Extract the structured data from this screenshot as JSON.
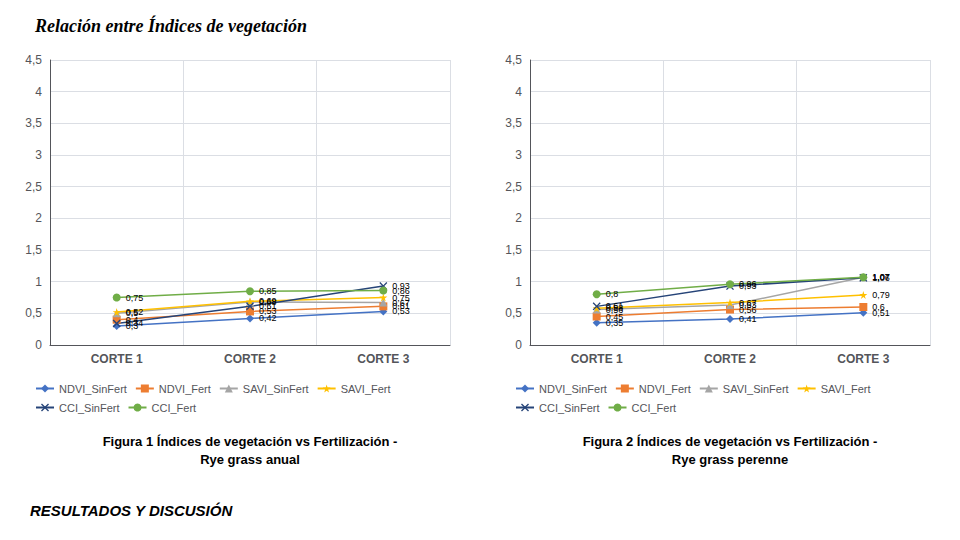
{
  "chart_data": [
    {
      "type": "line",
      "title": "Figura 1 Índices de vegetación vs Fertilización -",
      "subtitle": "Rye grass anual",
      "annotations": [
        "Relación entre Índices de vegetación",
        "RESULTADOS Y DISCUSIÓN"
      ],
      "categories": [
        "CORTE 1",
        "CORTE 2",
        "CORTE 3"
      ],
      "series": [
        {
          "name": "NDVI_SinFert",
          "color": "#4472C4",
          "marker": "diamond",
          "values": [
            0.3,
            0.42,
            0.53
          ],
          "value_labels": [
            "0,3",
            "0,42",
            "0,53"
          ]
        },
        {
          "name": "NDVI_Fert",
          "color": "#ED7D31",
          "marker": "square",
          "values": [
            0.4,
            0.53,
            0.61
          ],
          "value_labels": [
            "0,4",
            "0,53",
            "0,61"
          ]
        },
        {
          "name": "SAVI_SinFert",
          "color": "#A5A5A5",
          "marker": "triangle",
          "values": [
            0.5,
            0.68,
            0.67
          ],
          "value_labels": [
            "0,5",
            "0,68",
            "0,67"
          ]
        },
        {
          "name": "SAVI_Fert",
          "color": "#FFC000",
          "marker": "star",
          "values": [
            0.52,
            0.69,
            0.75
          ],
          "value_labels": [
            "0,52",
            "0,69",
            "0,75"
          ]
        },
        {
          "name": "CCI_SinFert",
          "color": "#264478",
          "marker": "x",
          "values": [
            0.34,
            0.61,
            0.93
          ],
          "value_labels": [
            "0,34",
            "0,61",
            "0,93"
          ]
        },
        {
          "name": "CCI_Fert",
          "color": "#70AD47",
          "marker": "circle",
          "values": [
            0.75,
            0.85,
            0.86
          ],
          "value_labels": [
            "0,75",
            "0,85",
            "0,86"
          ]
        }
      ],
      "ylim": [
        0,
        4.5
      ],
      "yticks": [
        0,
        {
          "value": 0.5,
          "label": "0,5"
        },
        1,
        {
          "value": 1.5,
          "label": "1,5"
        },
        2,
        {
          "value": 2.5,
          "label": "2,5"
        },
        3,
        {
          "value": 3.5,
          "label": "3,5"
        },
        4,
        {
          "value": 4.5,
          "label": "4,5"
        }
      ],
      "grid": true,
      "legend": "bottom",
      "data_labels": true
    },
    {
      "type": "line",
      "title": "Figura 2 Índices de vegetación vs Fertilización -",
      "subtitle": "Rye grass perenne",
      "categories": [
        "CORTE 1",
        "CORTE 2",
        "CORTE 3"
      ],
      "series": [
        {
          "name": "NDVI_SinFert",
          "color": "#4472C4",
          "marker": "diamond",
          "values": [
            0.35,
            0.41,
            0.51
          ],
          "value_labels": [
            "0,35",
            "0,41",
            "0,51"
          ]
        },
        {
          "name": "NDVI_Fert",
          "color": "#ED7D31",
          "marker": "square",
          "values": [
            0.45,
            0.56,
            0.6
          ],
          "value_labels": [
            "0,45",
            "0,56",
            "0,6"
          ]
        },
        {
          "name": "SAVI_SinFert",
          "color": "#A5A5A5",
          "marker": "triangle",
          "values": [
            0.56,
            0.63,
            1.07
          ],
          "value_labels": [
            "0,56",
            "0,63",
            "1,07"
          ]
        },
        {
          "name": "SAVI_Fert",
          "color": "#FFC000",
          "marker": "star",
          "values": [
            0.58,
            0.67,
            0.79
          ],
          "value_labels": [
            "0,58",
            "0,67",
            "0,79"
          ]
        },
        {
          "name": "CCI_SinFert",
          "color": "#264478",
          "marker": "x",
          "values": [
            0.61,
            0.93,
            1.06
          ],
          "value_labels": [
            "0,61",
            "0,93",
            "1,06"
          ]
        },
        {
          "name": "CCI_Fert",
          "color": "#70AD47",
          "marker": "circle",
          "values": [
            0.8,
            0.96,
            1.07
          ],
          "value_labels": [
            "0,8",
            "0,96",
            "1,07"
          ]
        }
      ],
      "ylim": [
        0,
        4.5
      ],
      "yticks": [
        0,
        {
          "value": 0.5,
          "label": "0,5"
        },
        1,
        {
          "value": 1.5,
          "label": "1,5"
        },
        2,
        {
          "value": 2.5,
          "label": "2,5"
        },
        3,
        {
          "value": 3.5,
          "label": "3,5"
        },
        4,
        {
          "value": 4.5,
          "label": "4,5"
        }
      ],
      "grid": true,
      "legend": "bottom",
      "data_labels": true
    }
  ]
}
